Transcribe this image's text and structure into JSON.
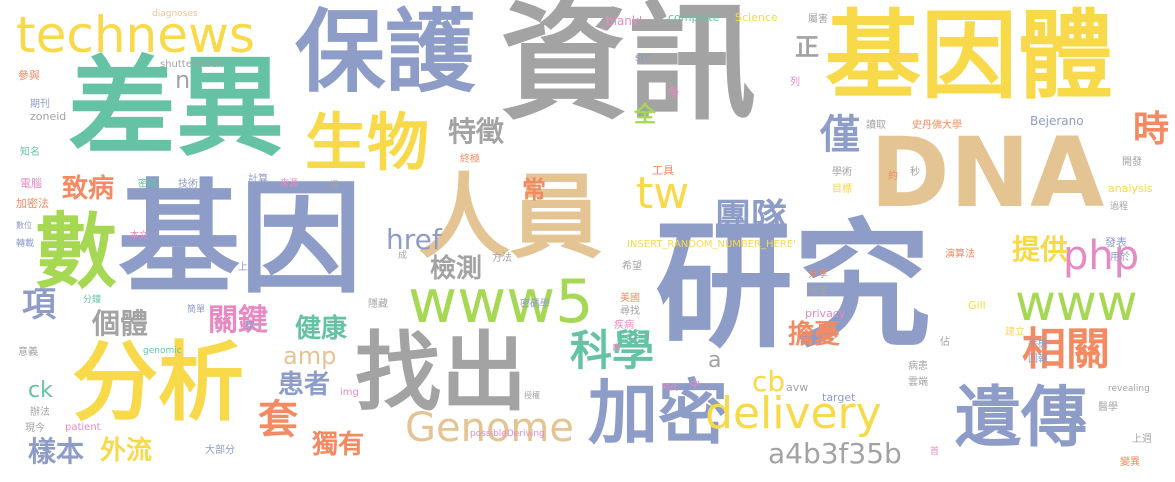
{
  "palette": {
    "gray": "#a3a3a3",
    "blue": "#8e9cc8",
    "yellow": "#f8d94a",
    "green": "#66c2a5",
    "orange": "#f48a62",
    "tan": "#e5c494",
    "lime": "#a6d854",
    "pink": "#e78ac3"
  },
  "words": [
    "資訊",
    "研究",
    "基因",
    "差異",
    "保護",
    "基因體",
    "DNA",
    "人員",
    "分析",
    "數",
    "找出",
    "technews",
    "生物",
    "遺傳",
    "加密",
    "www5",
    "tw",
    "團隊",
    "php",
    "www",
    "delivery",
    "科學",
    "Genome",
    "相關",
    "僅",
    "時",
    "特徵",
    "提供",
    "href",
    "檢測",
    "致病",
    "套",
    "患者",
    "獨有",
    "健康",
    "個體",
    "關鍵",
    "項",
    "樣本",
    "外流",
    "擔憂",
    "a4b3f35b",
    "cb",
    "amp",
    "全",
    "常",
    "正",
    "n",
    "ck",
    "a",
    "diagnoses",
    "shutterstock",
    "_blank'",
    "complete",
    "Science",
    "src",
    "INSERT_RANDOM_NUMBER_HERE'",
    "zoneid",
    "Bejerano",
    "analysis",
    "Gill",
    "privacy",
    "revealing",
    "patient",
    "possibleDeriving",
    "genomic",
    "img",
    "target",
    "avw",
    "屬害",
    "學",
    "讀取",
    "史丹佛大學",
    "開發",
    "過程",
    "發表",
    "用於",
    "手機",
    "回報",
    "工具",
    "學術",
    "目標",
    "約",
    "秒",
    "終極",
    "演算法",
    "希望",
    "美國",
    "尋找",
    "疾病",
    "分享",
    "特定",
    "建立",
    "佔",
    "病患",
    "雲端",
    "醫學",
    "上週",
    "變異",
    "首",
    "參與",
    "期刊",
    "知名",
    "電腦",
    "加密法",
    "數位",
    "轉載",
    "意義",
    "辦法",
    "現今",
    "分鐘",
    "簡單",
    "整",
    "本文",
    "密碼",
    "技術",
    "計算",
    "來源",
    "極",
    "成",
    "方法",
    "上傳",
    "隱藏",
    "密碼學",
    "串",
    "中",
    "時代",
    "授權",
    "大部分",
    "列"
  ]
}
